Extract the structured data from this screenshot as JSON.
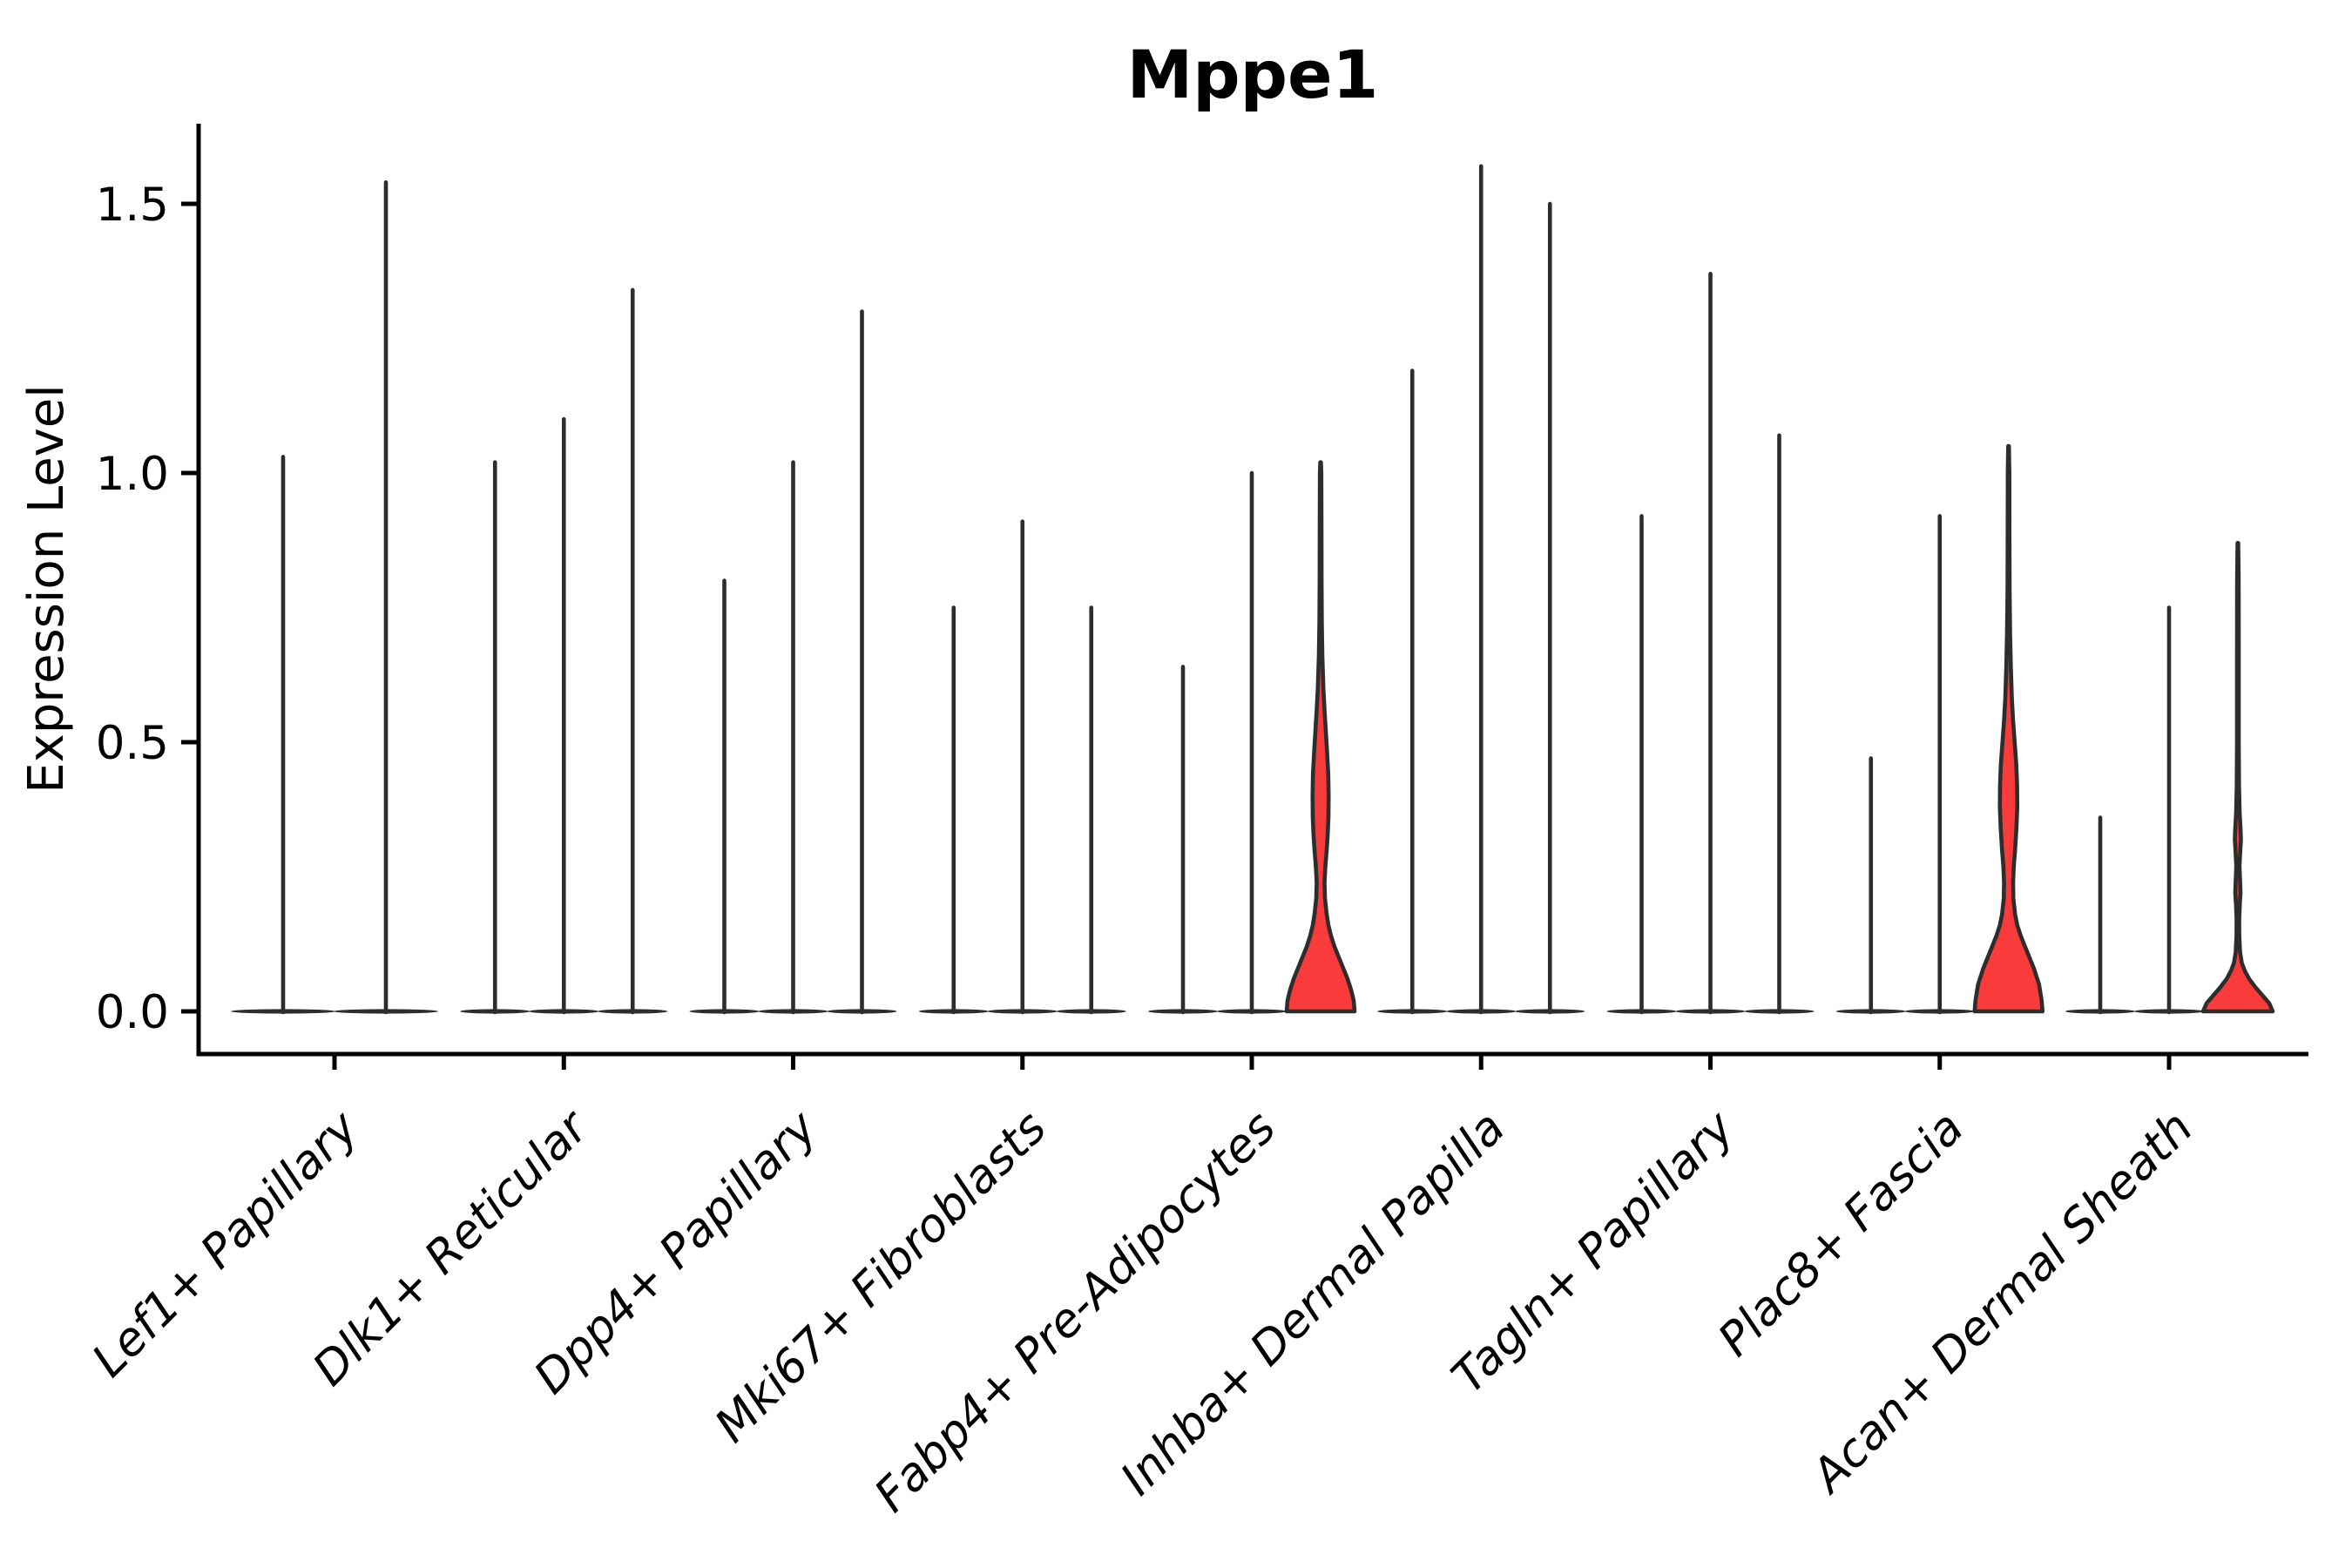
{
  "chart_data": {
    "type": "violin",
    "title": "Mppe1",
    "xlabel": "",
    "ylabel": "Expression Level",
    "grid": false,
    "legend": "none",
    "background": "#ffffff",
    "ylim": [
      -0.08,
      1.65
    ],
    "yticks": [
      {
        "value": 0.0,
        "label": "0.0"
      },
      {
        "value": 0.5,
        "label": "0.5"
      },
      {
        "value": 1.0,
        "label": "1.0"
      },
      {
        "value": 1.5,
        "label": "1.5"
      }
    ],
    "categories": [
      "Lef1+ Papillary",
      "Dlk1+ Reticular",
      "Dpp4+ Papillary",
      "Mki67+ Fibroblasts",
      "Fabp4+ Pre-Adipocytes",
      "Inhba+ Dermal Papilla",
      "Tagln+ Papillary",
      "Plac8+ Fascia",
      "Acan+ Dermal Sheath"
    ],
    "description": "Violin plot of Mppe1 expression per fibroblast subtype; most violins collapse to a baseline sliver at 0 with a thin spike to the max expression value; three violins (Fabp4+ Pre-Adipocytes, Plac8+ Fascia, Acan+ Dermal Sheath groups) are filled red with visible density bodies near 0.",
    "groups": [
      {
        "category": "Lef1+ Papillary",
        "violins": [
          {
            "max": 1.03,
            "highlighted": false
          },
          {
            "max": 1.54,
            "highlighted": false
          }
        ]
      },
      {
        "category": "Dlk1+ Reticular",
        "violins": [
          {
            "max": 1.02,
            "highlighted": false
          },
          {
            "max": 1.1,
            "highlighted": false
          },
          {
            "max": 1.34,
            "highlighted": false
          }
        ]
      },
      {
        "category": "Dpp4+ Papillary",
        "violins": [
          {
            "max": 0.8,
            "highlighted": false
          },
          {
            "max": 1.02,
            "highlighted": false
          },
          {
            "max": 1.3,
            "highlighted": false
          }
        ]
      },
      {
        "category": "Mki67+ Fibroblasts",
        "violins": [
          {
            "max": 0.75,
            "highlighted": false
          },
          {
            "max": 0.91,
            "highlighted": false
          },
          {
            "max": 0.75,
            "highlighted": false
          }
        ]
      },
      {
        "category": "Fabp4+ Pre-Adipocytes",
        "violins": [
          {
            "max": 0.64,
            "highlighted": false
          },
          {
            "max": 1.0,
            "highlighted": false
          },
          {
            "max": 1.02,
            "highlighted": true,
            "body_profile": [
              [
                0,
                39
              ],
              [
                0.02,
                38
              ],
              [
                0.04,
                35
              ],
              [
                0.06,
                31
              ],
              [
                0.08,
                26
              ],
              [
                0.1,
                21
              ],
              [
                0.12,
                16
              ],
              [
                0.14,
                12
              ],
              [
                0.16,
                9
              ],
              [
                0.18,
                7
              ],
              [
                0.21,
                5
              ],
              [
                0.24,
                4.5
              ],
              [
                0.27,
                5.5
              ],
              [
                0.3,
                7
              ],
              [
                0.33,
                8.2
              ],
              [
                0.36,
                9
              ],
              [
                0.4,
                9.2
              ],
              [
                0.44,
                8.8
              ],
              [
                0.48,
                7.5
              ],
              [
                0.52,
                6
              ],
              [
                0.56,
                4.5
              ],
              [
                0.6,
                3.2
              ],
              [
                0.66,
                2
              ],
              [
                0.72,
                1.4
              ],
              [
                0.8,
                1.1
              ],
              [
                0.9,
                1
              ],
              [
                1.0,
                0.8
              ],
              [
                1.02,
                0.4
              ]
            ]
          }
        ]
      },
      {
        "category": "Inhba+ Dermal Papilla",
        "violins": [
          {
            "max": 1.19,
            "highlighted": false
          },
          {
            "max": 1.57,
            "highlighted": false
          },
          {
            "max": 1.5,
            "highlighted": false
          }
        ]
      },
      {
        "category": "Tagln+ Papillary",
        "violins": [
          {
            "max": 0.92,
            "highlighted": false
          },
          {
            "max": 1.37,
            "highlighted": false
          },
          {
            "max": 1.07,
            "highlighted": false
          }
        ]
      },
      {
        "category": "Plac8+ Fascia",
        "violins": [
          {
            "max": 0.47,
            "highlighted": false
          },
          {
            "max": 0.92,
            "highlighted": false
          },
          {
            "max": 1.05,
            "highlighted": true,
            "body_profile": [
              [
                0,
                39
              ],
              [
                0.02,
                38
              ],
              [
                0.05,
                35
              ],
              [
                0.08,
                29
              ],
              [
                0.1,
                24
              ],
              [
                0.12,
                19
              ],
              [
                0.14,
                14
              ],
              [
                0.16,
                10
              ],
              [
                0.18,
                7.5
              ],
              [
                0.21,
                5.5
              ],
              [
                0.24,
                5.2
              ],
              [
                0.27,
                6
              ],
              [
                0.3,
                7.5
              ],
              [
                0.34,
                9
              ],
              [
                0.38,
                10
              ],
              [
                0.42,
                9.8
              ],
              [
                0.46,
                8.8
              ],
              [
                0.5,
                7
              ],
              [
                0.54,
                5.2
              ],
              [
                0.58,
                3.8
              ],
              [
                0.64,
                2.6
              ],
              [
                0.7,
                1.8
              ],
              [
                0.78,
                1.2
              ],
              [
                0.88,
                1
              ],
              [
                1.0,
                0.9
              ],
              [
                1.05,
                0.4
              ]
            ]
          }
        ]
      },
      {
        "category": "Acan+ Dermal Sheath",
        "violins": [
          {
            "max": 0.36,
            "highlighted": false
          },
          {
            "max": 0.75,
            "highlighted": false
          },
          {
            "max": 0.87,
            "highlighted": true,
            "body_profile": [
              [
                0,
                40
              ],
              [
                0.015,
                36
              ],
              [
                0.03,
                28
              ],
              [
                0.045,
                20
              ],
              [
                0.06,
                13
              ],
              [
                0.075,
                8
              ],
              [
                0.09,
                4.5
              ],
              [
                0.11,
                2.5
              ],
              [
                0.14,
                1.6
              ],
              [
                0.17,
                1.5
              ],
              [
                0.2,
                2.2
              ],
              [
                0.22,
                3
              ],
              [
                0.24,
                2.6
              ],
              [
                0.27,
                1.8
              ],
              [
                0.3,
                2.8
              ],
              [
                0.32,
                3.5
              ],
              [
                0.34,
                3
              ],
              [
                0.37,
                2
              ],
              [
                0.42,
                1.3
              ],
              [
                0.5,
                1
              ],
              [
                0.65,
                1
              ],
              [
                0.8,
                0.9
              ],
              [
                0.87,
                0.4
              ]
            ]
          }
        ]
      }
    ],
    "colors": {
      "highlight_fill": "#f93b3b",
      "default_fill": "#ffffff",
      "violin_edge": "#2d2d2d",
      "axis": "#000000",
      "text": "#000000"
    }
  }
}
